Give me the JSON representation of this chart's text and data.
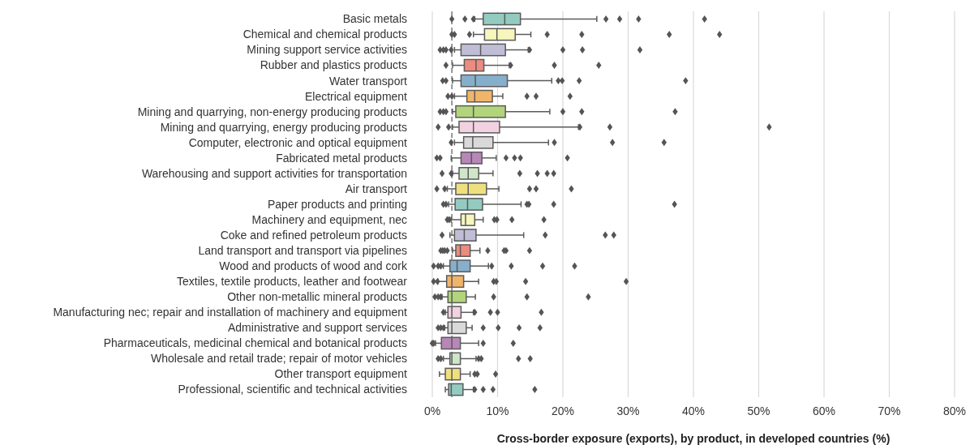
{
  "chart_data": {
    "type": "box",
    "orientation": "horizontal",
    "xlabel": "Cross-border exposure (exports), by product, in developed countries (%)",
    "categories": [
      "Basic metals",
      "Chemical and chemical products",
      "Mining support service activities",
      "Rubber and plastics products",
      "Water transport",
      "Electrical equipment",
      "Mining and quarrying, non-energy producing products",
      "Mining and quarrying, energy producing products",
      "Computer, electronic and optical equipment",
      "Fabricated metal products",
      "Warehousing and support activities for transportation",
      "Air transport",
      "Paper products and printing",
      "Machinery and equipment, nec ",
      "Coke and refined petroleum products",
      "Land transport and transport via pipelines",
      "Wood and products of wood and cork",
      "Textiles, textile products, leather and footwear",
      "Other non-metallic mineral products",
      "Manufacturing nec; repair and installation of machinery and equipment",
      "Administrative and support services",
      "Pharmaceuticals, medicinal chemical and botanical products",
      "Wholesale and retail trade; repair of motor vehicles",
      "Other transport equipment",
      "Professional, scientific and technical activities"
    ],
    "colors": [
      "#93cbc1",
      "#f6f6bd",
      "#c0bdd6",
      "#ec8b7f",
      "#86afcc",
      "#f0b46a",
      "#b2d47a",
      "#f2d2e1",
      "#d9d9d9",
      "#b787b8",
      "#cfe6c9",
      "#efe07e",
      "#93cbc1",
      "#f6f6bd",
      "#c0bdd6",
      "#ec8b7f",
      "#86afcc",
      "#f0b46a",
      "#b2d47a",
      "#f2d2e1",
      "#d9d9d9",
      "#b787b8",
      "#cfe6c9",
      "#efe07e",
      "#93cbc1"
    ],
    "boxes": [
      {
        "low": 6.5,
        "q1": 7.8,
        "median": 11.1,
        "q3": 13.5,
        "high": 25.2,
        "outliers": [
          3.0,
          5.0,
          6.3,
          26.6,
          28.7,
          31.6,
          41.7
        ]
      },
      {
        "low": 6.3,
        "q1": 8.0,
        "median": 9.9,
        "q3": 12.7,
        "high": 15.1,
        "outliers": [
          3.0,
          3.4,
          5.7,
          17.6,
          22.9,
          36.3,
          44.0
        ]
      },
      {
        "low": 3.4,
        "q1": 4.4,
        "median": 7.4,
        "q3": 11.2,
        "high": 14.7,
        "outliers": [
          1.2,
          1.7,
          2.1,
          2.9,
          14.9,
          20.0,
          23.0,
          31.8
        ]
      },
      {
        "low": 3.1,
        "q1": 4.9,
        "median": 6.7,
        "q3": 7.9,
        "high": 11.8,
        "outliers": [
          2.1,
          12.0,
          18.7,
          25.5
        ]
      },
      {
        "low": 3.1,
        "q1": 4.4,
        "median": 6.6,
        "q3": 11.5,
        "high": 18.3,
        "outliers": [
          1.6,
          2.1,
          19.3,
          19.9,
          22.5,
          38.8
        ]
      },
      {
        "low": 3.4,
        "q1": 5.3,
        "median": 6.5,
        "q3": 9.2,
        "high": 10.8,
        "outliers": [
          2.4,
          3.0,
          14.5,
          15.9,
          21.1
        ]
      },
      {
        "low": 3.1,
        "q1": 3.6,
        "median": 6.3,
        "q3": 11.2,
        "high": 18.0,
        "outliers": [
          1.2,
          1.7,
          2.1,
          20.0,
          22.9,
          37.2
        ]
      },
      {
        "low": 3.1,
        "q1": 4.1,
        "median": 6.3,
        "q3": 10.3,
        "high": 22.4,
        "outliers": [
          0.9,
          2.5,
          22.6,
          27.2,
          51.6
        ]
      },
      {
        "low": 3.4,
        "q1": 4.8,
        "median": 6.2,
        "q3": 9.3,
        "high": 17.8,
        "outliers": [
          2.9,
          18.7,
          27.6,
          35.5
        ]
      },
      {
        "low": 2.9,
        "q1": 4.4,
        "median": 6.0,
        "q3": 7.6,
        "high": 9.8,
        "outliers": [
          0.7,
          1.2,
          11.3,
          12.6,
          13.5,
          20.7
        ]
      },
      {
        "low": 3.1,
        "q1": 4.1,
        "median": 5.5,
        "q3": 7.1,
        "high": 9.3,
        "outliers": [
          1.5,
          2.9,
          13.4,
          16.1,
          17.6,
          18.6
        ]
      },
      {
        "low": 2.3,
        "q1": 3.6,
        "median": 5.5,
        "q3": 8.3,
        "high": 10.2,
        "outliers": [
          0.7,
          1.9,
          14.9,
          15.9,
          21.3
        ]
      },
      {
        "low": 2.5,
        "q1": 3.5,
        "median": 5.4,
        "q3": 7.7,
        "high": 13.6,
        "outliers": [
          1.7,
          2.1,
          14.5,
          14.8,
          18.6,
          37.1
        ]
      },
      {
        "low": 2.9,
        "q1": 4.4,
        "median": 5.1,
        "q3": 6.5,
        "high": 7.8,
        "outliers": [
          2.3,
          2.6,
          9.5,
          9.9,
          12.2,
          17.1
        ]
      },
      {
        "low": 2.7,
        "q1": 3.4,
        "median": 4.9,
        "q3": 6.7,
        "high": 14.0,
        "outliers": [
          1.5,
          17.3,
          26.5,
          27.8
        ]
      },
      {
        "low": 3.1,
        "q1": 3.6,
        "median": 4.3,
        "q3": 5.8,
        "high": 7.3,
        "outliers": [
          1.3,
          1.6,
          1.9,
          2.3,
          8.5,
          11.0,
          11.3,
          14.9
        ]
      },
      {
        "low": 1.7,
        "q1": 2.7,
        "median": 3.8,
        "q3": 5.8,
        "high": 8.6,
        "outliers": [
          0.2,
          0.9,
          1.3,
          9.1,
          12.1,
          16.9,
          21.8
        ]
      },
      {
        "low": 0.9,
        "q1": 2.2,
        "median": 3.0,
        "q3": 4.8,
        "high": 7.1,
        "outliers": [
          0.2,
          0.8,
          9.4,
          9.8,
          14.3,
          29.7
        ]
      },
      {
        "low": 1.5,
        "q1": 2.4,
        "median": 3.0,
        "q3": 5.2,
        "high": 6.6,
        "outliers": [
          0.4,
          0.9,
          1.3,
          9.4,
          14.5,
          23.9
        ]
      },
      {
        "low": 2.0,
        "q1": 2.4,
        "median": 3.0,
        "q3": 4.4,
        "high": 6.3,
        "outliers": [
          1.7,
          6.5,
          8.9,
          10.0,
          16.7
        ]
      },
      {
        "low": 1.9,
        "q1": 2.4,
        "median": 3.0,
        "q3": 5.2,
        "high": 6.1,
        "outliers": [
          0.9,
          1.3,
          1.7,
          7.8,
          10.1,
          13.3,
          16.5
        ]
      },
      {
        "low": 0.5,
        "q1": 1.4,
        "median": 3.0,
        "q3": 4.3,
        "high": 7.1,
        "outliers": [
          0.0,
          0.2,
          7.8,
          12.4
        ]
      },
      {
        "low": 1.7,
        "q1": 2.7,
        "median": 3.0,
        "q3": 4.3,
        "high": 6.7,
        "outliers": [
          0.9,
          1.3,
          7.1,
          7.5,
          13.2,
          15.0
        ]
      },
      {
        "low": 1.1,
        "q1": 2.0,
        "median": 3.0,
        "q3": 4.3,
        "high": 5.8,
        "outliers": [
          6.5,
          6.9,
          9.7
        ]
      },
      {
        "low": 2.0,
        "q1": 2.5,
        "median": 2.9,
        "q3": 4.7,
        "high": 6.3,
        "outliers": [
          6.5,
          7.8,
          9.3,
          15.7
        ]
      }
    ],
    "xlim": [
      0,
      80
    ],
    "xticks": [
      {
        "value": 0,
        "label": "0%"
      },
      {
        "value": 10,
        "label": "10%"
      },
      {
        "value": 20,
        "label": "20%"
      },
      {
        "value": 30,
        "label": "30%"
      },
      {
        "value": 40,
        "label": "40%"
      },
      {
        "value": 50,
        "label": "50%"
      },
      {
        "value": 60,
        "label": "60%"
      },
      {
        "value": 70,
        "label": "70%"
      },
      {
        "value": 80,
        "label": "80%"
      }
    ],
    "grid": "x",
    "marker": "diamond",
    "ref_lines": [
      {
        "axis": "x",
        "value": 3,
        "color": "#777777",
        "line_style": "dashed"
      }
    ]
  }
}
